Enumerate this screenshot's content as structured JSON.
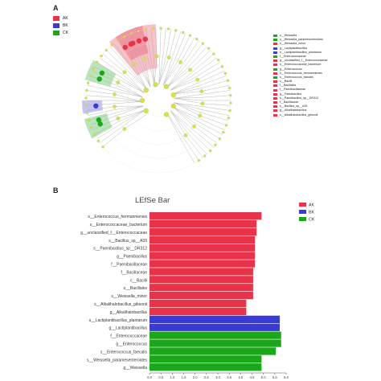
{
  "panelA": {
    "letter": "A",
    "legend": [
      {
        "label": "AK",
        "color": "#e8334a"
      },
      {
        "label": "BK",
        "color": "#3a3ad6"
      },
      {
        "label": "CK",
        "color": "#1aa81a"
      }
    ],
    "taxa": [
      {
        "label": "s__Weissella",
        "color": "#1aa81a"
      },
      {
        "label": "s__Weissella_paramesenteroides",
        "color": "#1aa81a"
      },
      {
        "label": "s__Weissella_minor",
        "color": "#e8334a"
      },
      {
        "label": "g__Lactiplantibacillus",
        "color": "#3a3ad6"
      },
      {
        "label": "s__Lactiplantibacillus_plantarum",
        "color": "#3a3ad6"
      },
      {
        "label": "f__Enterococcaceae",
        "color": "#1aa81a"
      },
      {
        "label": "g__unclassified_f__Enterococcaceae",
        "color": "#e8334a"
      },
      {
        "label": "s__Enterococcaceae_bacterium",
        "color": "#e8334a"
      },
      {
        "label": "g__Enterococcus",
        "color": "#1aa81a"
      },
      {
        "label": "s__Enterococcus_hermanniensis",
        "color": "#e8334a"
      },
      {
        "label": "s__Enterococcus_faecalis",
        "color": "#1aa81a"
      },
      {
        "label": "c__Bacilli",
        "color": "#e8334a"
      },
      {
        "label": "f__Bacillales",
        "color": "#e8334a"
      },
      {
        "label": "f__Paenibacillaceae",
        "color": "#e8334a"
      },
      {
        "label": "g__Paenibacillus",
        "color": "#e8334a"
      },
      {
        "label": "s__Paenibacillus_sp__DR312",
        "color": "#e8334a"
      },
      {
        "label": "f__Bacillaceae",
        "color": "#e8334a"
      },
      {
        "label": "s__Bacillus_sp__A39",
        "color": "#e8334a"
      },
      {
        "label": "g__Alkalihalobacillus",
        "color": "#e8334a"
      },
      {
        "label": "s__Alkalihalobacillus_gibsonii",
        "color": "#e8334a"
      }
    ]
  },
  "panelB": {
    "letter": "B"
  },
  "chart_data": {
    "type": "bar",
    "orientation": "horizontal",
    "title": "LEfSe Bar",
    "xlabel": "LDA SCORE(log10)",
    "ylabel": "",
    "xlim": [
      0,
      6
    ],
    "xticks": [
      "0.0",
      "0.5",
      "1.0",
      "1.5",
      "2.0",
      "2.5",
      "3.0",
      "3.5",
      "4.0",
      "4.5",
      "5.0",
      "5.5",
      "6.0"
    ],
    "legend": [
      {
        "label": "AK",
        "color": "#e8334a"
      },
      {
        "label": "BK",
        "color": "#3a3ad6"
      },
      {
        "label": "CK",
        "color": "#1aa81a"
      }
    ],
    "legend_position": "top-right",
    "colors": {
      "AK": "#e8334a",
      "BK": "#3a3ad6",
      "CK": "#1aa81a"
    },
    "bars": [
      {
        "label": "s__Enterococcus_hermanniensis",
        "group": "AK",
        "value": 4.92
      },
      {
        "label": "s__Enterococcaceae_bacterium",
        "group": "AK",
        "value": 4.7
      },
      {
        "label": "g__unclassified_f__Enterococcaceae",
        "group": "AK",
        "value": 4.7
      },
      {
        "label": "s__Bacillus_sp__A39",
        "group": "AK",
        "value": 4.63
      },
      {
        "label": "s__Paenibacillus_sp__DR312",
        "group": "AK",
        "value": 4.63
      },
      {
        "label": "g__Paenibacillus",
        "group": "AK",
        "value": 4.63
      },
      {
        "label": "f__Paenibacillaceae",
        "group": "AK",
        "value": 4.63
      },
      {
        "label": "f__Bacillaceae",
        "group": "AK",
        "value": 4.55
      },
      {
        "label": "c__Bacilli",
        "group": "AK",
        "value": 4.55
      },
      {
        "label": "o__Bacillales",
        "group": "AK",
        "value": 4.55
      },
      {
        "label": "s__Weissella_minor",
        "group": "AK",
        "value": 4.55
      },
      {
        "label": "s__Alkalihalobacillus_gibsonii",
        "group": "AK",
        "value": 4.25
      },
      {
        "label": "g__Alkalihalobacillus",
        "group": "AK",
        "value": 4.25
      },
      {
        "label": "s__Lactiplantibacillus_plantarum",
        "group": "BK",
        "value": 5.72
      },
      {
        "label": "g__Lactiplantibacillus",
        "group": "BK",
        "value": 5.72
      },
      {
        "label": "f__Enterococcaceae",
        "group": "CK",
        "value": 5.78
      },
      {
        "label": "g__Enterococcus",
        "group": "CK",
        "value": 5.78
      },
      {
        "label": "s__Enterococcus_faecalis",
        "group": "CK",
        "value": 5.55
      },
      {
        "label": "s__Weissella_paramesenteroides",
        "group": "CK",
        "value": 4.92
      },
      {
        "label": "g__Weissella",
        "group": "CK",
        "value": 4.92
      }
    ]
  }
}
